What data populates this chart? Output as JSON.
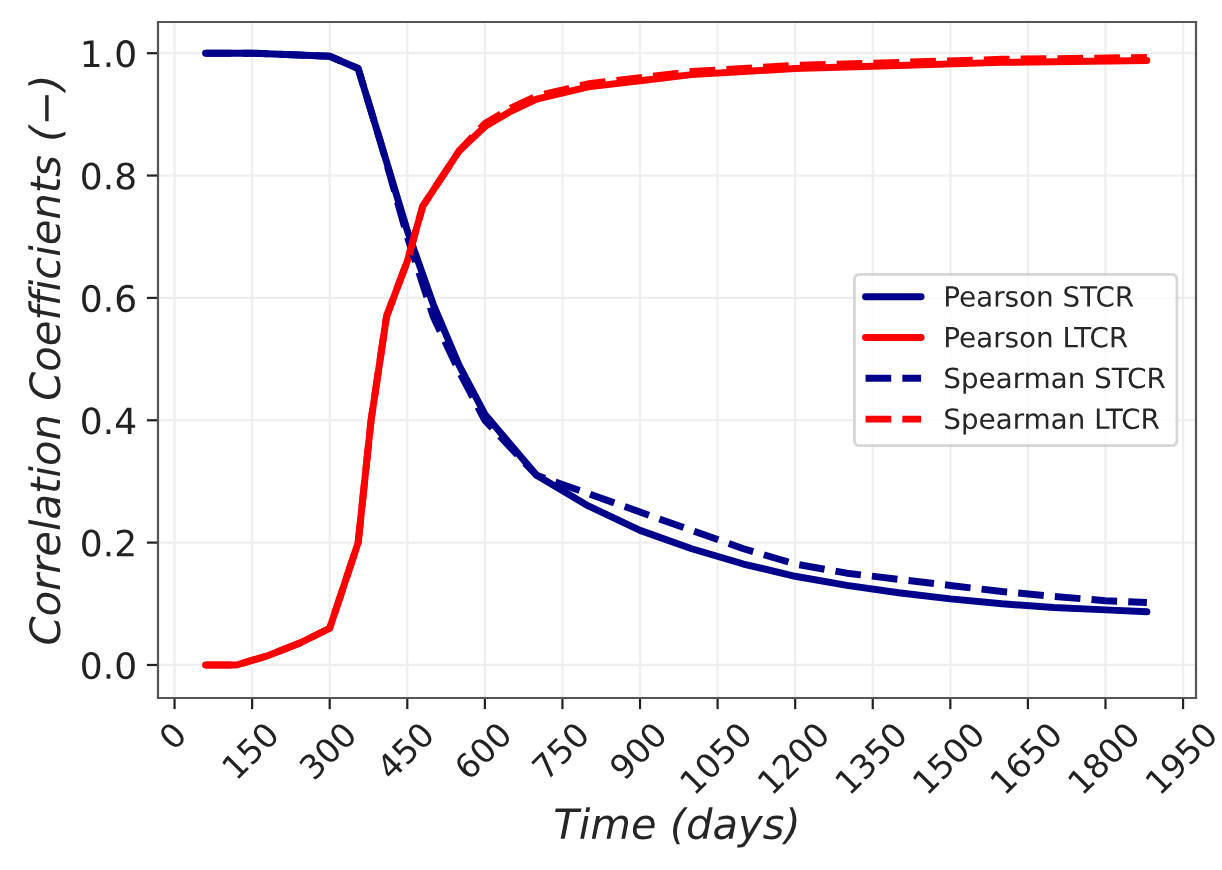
{
  "chart_data": {
    "type": "line",
    "xlabel": "Time (days)",
    "ylabel": "Correlation Coefficients (−)",
    "xlim": [
      -32,
      1975
    ],
    "ylim": [
      -0.054,
      1.051
    ],
    "xticks": [
      0,
      150,
      300,
      450,
      600,
      750,
      900,
      1050,
      1200,
      1350,
      1500,
      1650,
      1800,
      1950
    ],
    "yticks": [
      {
        "value": 0,
        "label": "0.0"
      },
      {
        "value": 0.2,
        "label": "0.2"
      },
      {
        "value": 0.4,
        "label": "0.4"
      },
      {
        "value": 0.6,
        "label": "0.6"
      },
      {
        "value": 0.8,
        "label": "0.8"
      },
      {
        "value": 1,
        "label": "1.0"
      }
    ],
    "grid": true,
    "legend": "right",
    "marker": "none",
    "series": [
      {
        "name": "Pearson STCR",
        "color": "#00008b",
        "line_style": "solid",
        "x": [
          60,
          150,
          300,
          355,
          400,
          450,
          500,
          550,
          600,
          650,
          700,
          800,
          900,
          1000,
          1100,
          1200,
          1300,
          1400,
          1500,
          1600,
          1700,
          1800,
          1880
        ],
        "values": [
          1.0,
          1.0,
          0.995,
          0.975,
          0.85,
          0.71,
          0.59,
          0.49,
          0.41,
          0.36,
          0.31,
          0.26,
          0.22,
          0.19,
          0.165,
          0.145,
          0.13,
          0.118,
          0.108,
          0.1,
          0.094,
          0.09,
          0.087
        ]
      },
      {
        "name": "Pearson LTCR",
        "color": "#ff0000",
        "line_style": "solid",
        "x": [
          60,
          120,
          180,
          240,
          300,
          355,
          380,
          410,
          450,
          480,
          550,
          600,
          650,
          700,
          800,
          900,
          1000,
          1100,
          1200,
          1400,
          1600,
          1880
        ],
        "values": [
          0.0,
          0.0,
          0.015,
          0.035,
          0.06,
          0.2,
          0.4,
          0.57,
          0.66,
          0.75,
          0.84,
          0.88,
          0.905,
          0.925,
          0.945,
          0.955,
          0.965,
          0.97,
          0.975,
          0.98,
          0.985,
          0.988
        ]
      },
      {
        "name": "Spearman STCR",
        "color": "#00008b",
        "line_style": "dashed",
        "x": [
          60,
          150,
          300,
          355,
          400,
          450,
          500,
          550,
          600,
          650,
          700,
          800,
          900,
          1000,
          1100,
          1200,
          1300,
          1400,
          1500,
          1600,
          1700,
          1800,
          1880
        ],
        "values": [
          1.0,
          1.0,
          0.995,
          0.975,
          0.85,
          0.7,
          0.57,
          0.48,
          0.4,
          0.355,
          0.31,
          0.28,
          0.25,
          0.22,
          0.19,
          0.165,
          0.15,
          0.14,
          0.13,
          0.12,
          0.112,
          0.105,
          0.102
        ]
      },
      {
        "name": "Spearman LTCR",
        "color": "#ff0000",
        "line_style": "dashed",
        "x": [
          60,
          120,
          180,
          240,
          300,
          355,
          380,
          410,
          450,
          480,
          550,
          600,
          650,
          700,
          800,
          900,
          1000,
          1100,
          1200,
          1400,
          1600,
          1880
        ],
        "values": [
          0.0,
          0.0,
          0.015,
          0.035,
          0.06,
          0.2,
          0.4,
          0.57,
          0.66,
          0.75,
          0.84,
          0.885,
          0.91,
          0.93,
          0.95,
          0.96,
          0.97,
          0.975,
          0.98,
          0.985,
          0.99,
          0.993
        ]
      }
    ]
  }
}
